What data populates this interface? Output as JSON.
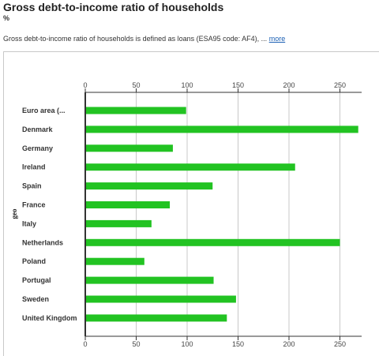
{
  "header": {
    "title": "Gross debt-to-income ratio of households",
    "unit": "%",
    "description": "Gross debt-to-income ratio of households is defined as loans (ESA95 code: AF4), ...",
    "more_link": "more"
  },
  "colors": {
    "bar": "#22c322",
    "grid": "#c8c8c8",
    "axis": "#333333",
    "link": "#1a5fb4"
  },
  "chart_data": {
    "type": "bar",
    "orientation": "horizontal",
    "title": "",
    "xlabel": "",
    "ylabel": "geo",
    "xlim": [
      0,
      270
    ],
    "xticks": [
      0,
      50,
      100,
      150,
      200,
      250
    ],
    "grid": true,
    "categories": [
      "Euro area (...",
      "Denmark",
      "Germany",
      "Ireland",
      "Spain",
      "France",
      "Italy",
      "Netherlands",
      "Poland",
      "Portugal",
      "Sweden",
      "United Kingdom"
    ],
    "values": [
      99,
      268,
      86,
      206,
      125,
      83,
      65,
      250,
      58,
      126,
      148,
      139
    ]
  }
}
